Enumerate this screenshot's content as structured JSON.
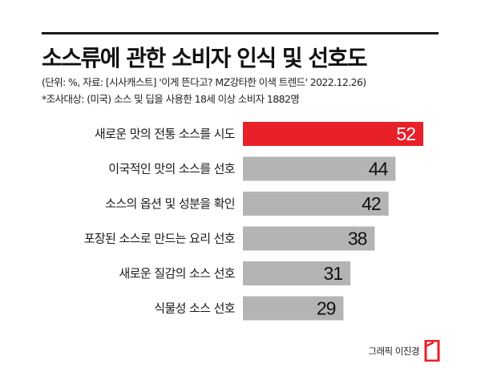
{
  "title": "소스류에 관한 소비자 인식 및 선호도",
  "notes": {
    "source": "(단위: %, 자료: [시사캐스트] '이게 뜬다고? MZ강타한 이색 트렌드' 2022.12.26)",
    "survey": "*조사대상: (미국) 소스 및 딥을 사용한 18세 이상 소비자 1882명"
  },
  "credit": "그래픽 이진경",
  "colors": {
    "highlight": "#e8202a",
    "bar": "#b4b4b4",
    "highlight_text": "#ffffff",
    "text": "#111111"
  },
  "chart_data": {
    "type": "bar",
    "orientation": "horizontal",
    "title": "소스류에 관한 소비자 인식 및 선호도",
    "unit": "%",
    "categories": [
      "새로운 맛의 전통 소스를 시도",
      "이국적인 맛의 소스를 선호",
      "소스의 옵션 및 성분을 확인",
      "포장된 소스로 만드는 요리 선호",
      "새로운 질감의 소스 선호",
      "식물성 소스 선호"
    ],
    "values": [
      52,
      44,
      42,
      38,
      31,
      29
    ],
    "highlight_index": 0,
    "xlim": [
      0,
      52
    ],
    "grid": false,
    "legend": "none"
  }
}
